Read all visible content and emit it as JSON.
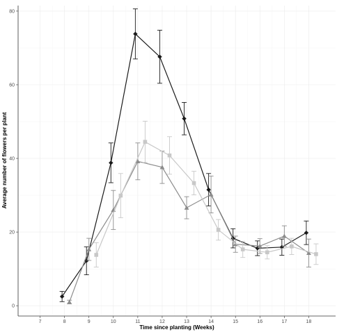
{
  "chart_data": {
    "type": "line",
    "title": "",
    "xlabel": "Time since planting (Weeks)",
    "ylabel": "Average number of flowers per plant",
    "xlim": [
      6.1,
      19.1
    ],
    "ylim": [
      -2.8,
      81.5
    ],
    "x_ticks": [
      7,
      8,
      9,
      10,
      11,
      12,
      13,
      14,
      15,
      16,
      17,
      18
    ],
    "y_ticks": [
      0,
      20,
      40,
      60,
      80
    ],
    "grid": true,
    "legend": "none",
    "series": [
      {
        "color": "#1a1a1a",
        "marker": "diamond",
        "x": [
          7.9,
          8.9,
          9.9,
          10.9,
          11.9,
          12.9,
          13.9,
          14.9,
          15.9,
          16.9,
          17.9
        ],
        "y": [
          2.5,
          12.2,
          38.8,
          73.8,
          67.6,
          50.8,
          31.5,
          18.3,
          15.6,
          15.9,
          19.8
        ],
        "err": [
          1.4,
          3.8,
          5.4,
          6.8,
          7.2,
          4.4,
          4.4,
          2.6,
          2.0,
          2.2,
          3.2
        ]
      },
      {
        "color": "#8c8c8c",
        "marker": "triangle",
        "x": [
          8.2,
          9.0,
          10.0,
          11.0,
          12.0,
          13.0,
          14.0,
          15.0,
          16.0,
          17.0,
          18.0
        ],
        "y": [
          1.0,
          15.3,
          26.0,
          39.2,
          37.6,
          26.6,
          30.2,
          16.7,
          16.2,
          18.9,
          14.3
        ],
        "err": [
          0.5,
          3.0,
          5.3,
          5.0,
          4.4,
          3.0,
          5.0,
          2.2,
          2.0,
          2.8,
          3.8
        ]
      },
      {
        "color": "#c8c8c8",
        "marker": "square",
        "x": [
          9.3,
          10.3,
          11.3,
          12.3,
          13.3,
          14.3,
          15.3,
          16.3,
          17.3,
          18.3
        ],
        "y": [
          13.8,
          29.9,
          44.5,
          40.8,
          33.3,
          20.6,
          15.3,
          14.5,
          16.1,
          14.0
        ],
        "err": [
          3.3,
          6.0,
          5.6,
          5.1,
          3.2,
          2.8,
          2.2,
          1.8,
          2.2,
          2.8
        ]
      }
    ]
  }
}
